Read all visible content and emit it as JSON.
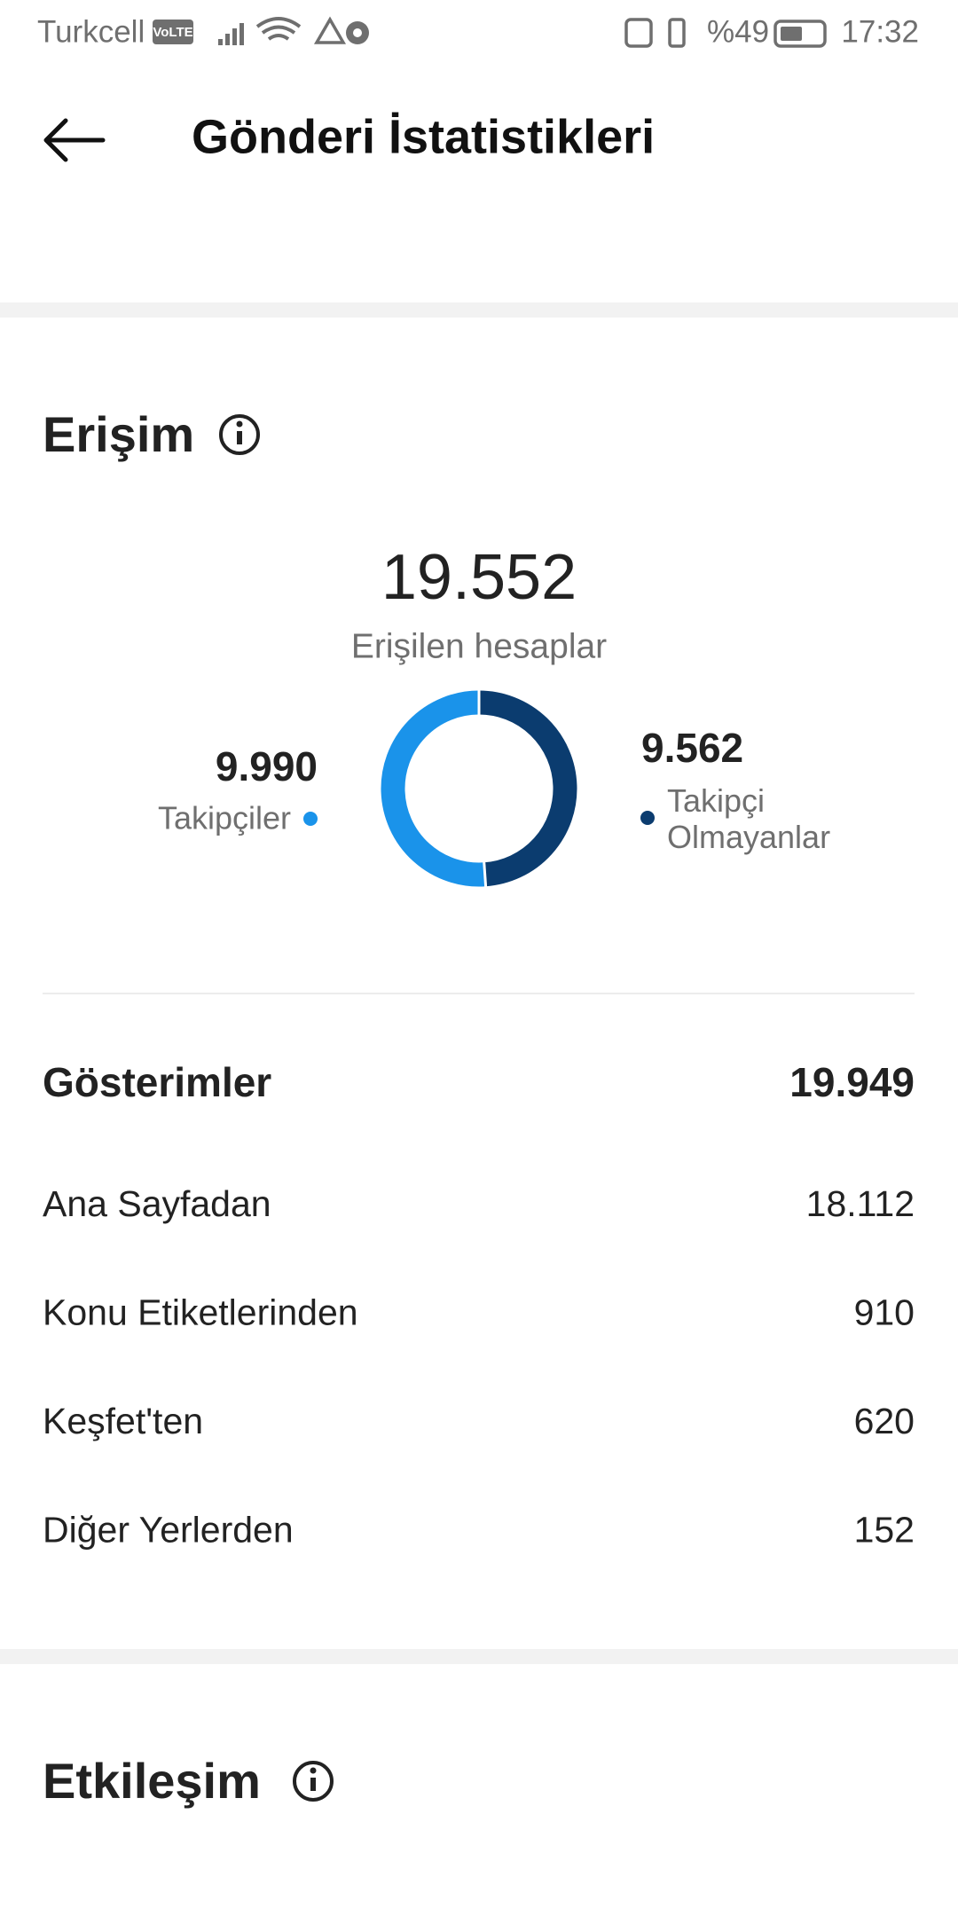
{
  "status_bar": {
    "carrier": "Turkcell",
    "volte": "VoLTE",
    "battery": "%49",
    "time": "17:32"
  },
  "header": {
    "title": "Gönderi İstatistikleri"
  },
  "reach": {
    "title": "Erişim",
    "total": "19.552",
    "total_caption": "Erişilen hesaplar"
  },
  "chart_data": {
    "type": "donut",
    "categories": [
      "Takipçiler",
      "Takipçi Olmayanlar"
    ],
    "values": [
      9990,
      9562
    ],
    "value_labels": [
      "9.990",
      "9.562"
    ],
    "colors": [
      "#1a93ea",
      "#0b3c6f"
    ]
  },
  "impressions": {
    "title": "Gösterimler",
    "total": "19.949",
    "rows": [
      [
        "Ana Sayfadan",
        "18.112"
      ],
      [
        "Konu Etiketlerinden",
        "910"
      ],
      [
        "Keşfet'ten",
        "620"
      ],
      [
        "Diğer Yerlerden",
        "152"
      ]
    ]
  },
  "engagement": {
    "title": "Etkileşim"
  }
}
